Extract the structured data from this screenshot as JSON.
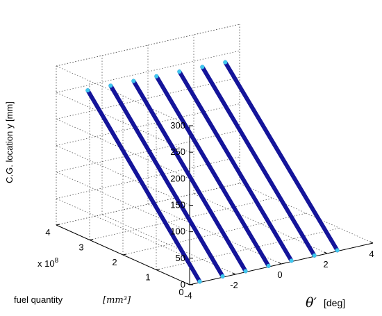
{
  "chart_data": {
    "type": "line3d",
    "title": "",
    "zlabel": "C.G. location y [mm]",
    "ylabel": "fuel quantity",
    "ylabel_unit": "[mm³]",
    "y_multiplier": "x 10",
    "y_multiplier_exp": "8",
    "xlabel_symbol": "θ′",
    "xlabel_unit": "[deg]",
    "xlim": [
      -4,
      4
    ],
    "ylim": [
      0,
      4
    ],
    "zlim": [
      0,
      300
    ],
    "xticks": [
      "-4",
      "-2",
      "0",
      "2",
      "4"
    ],
    "yticks": [
      "0",
      "1",
      "2",
      "3",
      "4"
    ],
    "zticks": [
      "0",
      "50",
      "100",
      "150",
      "200",
      "250",
      "300"
    ],
    "grid": true,
    "line_color": "#14149a",
    "end_marker_color": "#3fc8ee",
    "series": [
      {
        "theta": -3.5,
        "fuel": [
          3.4,
          0.04
        ],
        "cg": [
          266,
          0
        ]
      },
      {
        "theta": -2.5,
        "fuel": [
          3.4,
          0.04
        ],
        "cg": [
          265,
          0
        ]
      },
      {
        "theta": -1.5,
        "fuel": [
          3.4,
          0.04
        ],
        "cg": [
          264,
          0
        ]
      },
      {
        "theta": -0.5,
        "fuel": [
          3.4,
          0.04
        ],
        "cg": [
          263,
          0
        ]
      },
      {
        "theta": 0.5,
        "fuel": [
          3.4,
          0.04
        ],
        "cg": [
          262,
          0
        ]
      },
      {
        "theta": 1.5,
        "fuel": [
          3.4,
          0.04
        ],
        "cg": [
          261,
          0
        ]
      },
      {
        "theta": 2.5,
        "fuel": [
          3.4,
          0.04
        ],
        "cg": [
          260,
          0
        ]
      }
    ]
  }
}
